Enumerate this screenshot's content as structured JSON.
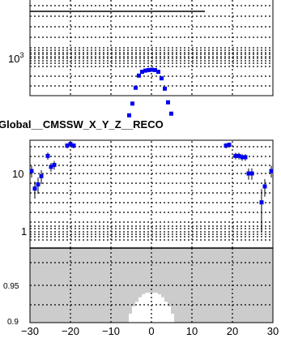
{
  "chart_data": [
    {
      "id": "top-panel",
      "type": "scatter",
      "y_scale": "log",
      "grid": true,
      "y_tick_labels": [
        {
          "base": "10",
          "exp": "3"
        }
      ],
      "points": [
        {
          "x": -5.5,
          "y": 250
        },
        {
          "x": -4.7,
          "y": 330
        },
        {
          "x": -3.9,
          "y": 480
        },
        {
          "x": -3.1,
          "y": 640
        },
        {
          "x": -2.3,
          "y": 700
        },
        {
          "x": -1.5,
          "y": 720
        },
        {
          "x": -0.7,
          "y": 730
        },
        {
          "x": 0.1,
          "y": 735
        },
        {
          "x": 0.9,
          "y": 730
        },
        {
          "x": 1.7,
          "y": 700
        },
        {
          "x": 2.5,
          "y": 600
        },
        {
          "x": 3.3,
          "y": 470
        },
        {
          "x": 4.1,
          "y": 340
        },
        {
          "x": 4.9,
          "y": 260
        }
      ]
    },
    {
      "id": "middle-panel",
      "type": "scatter",
      "title": "Global__CMSSW_X_Y_Z__RECO",
      "y_scale": "log",
      "grid": true,
      "y_tick_labels": [
        {
          "base": "10"
        },
        {
          "base": "1"
        }
      ],
      "points": [
        {
          "x": -29.6,
          "y": 11,
          "err": 2.5
        },
        {
          "x": -28.8,
          "y": 5.5,
          "err": 1.8
        },
        {
          "x": -28.0,
          "y": 6.5,
          "err": 2.0
        },
        {
          "x": -27.2,
          "y": 9,
          "err": 2.4
        },
        {
          "x": -25.6,
          "y": 20,
          "err": 2.8
        },
        {
          "x": -24.8,
          "y": 13,
          "err": 2.2
        },
        {
          "x": -24.0,
          "y": 14,
          "err": 2.4
        },
        {
          "x": -20.8,
          "y": 30,
          "err": 3.0
        },
        {
          "x": -20.0,
          "y": 32,
          "err": 3.0
        },
        {
          "x": -19.2,
          "y": 30,
          "err": 3.0
        },
        {
          "x": 18.4,
          "y": 30,
          "err": 3.0
        },
        {
          "x": 19.2,
          "y": 31,
          "err": 3.0
        },
        {
          "x": 20.8,
          "y": 20,
          "err": 2.6
        },
        {
          "x": 21.6,
          "y": 20,
          "err": 2.6
        },
        {
          "x": 22.4,
          "y": 19,
          "err": 2.5
        },
        {
          "x": 23.2,
          "y": 19,
          "err": 2.5
        },
        {
          "x": 24.0,
          "y": 10,
          "err": 2.2
        },
        {
          "x": 24.8,
          "y": 10,
          "err": 2.2
        },
        {
          "x": 27.2,
          "y": 3.2,
          "err": 2.2
        },
        {
          "x": 28.0,
          "y": 6,
          "err": 2.0
        },
        {
          "x": 29.6,
          "y": 11,
          "err": 2.5
        }
      ]
    },
    {
      "id": "bottom-panel",
      "type": "area",
      "grid": true,
      "ylim": [
        0.9,
        1.0
      ],
      "y_tick_labels": [
        "0.95",
        "0.9"
      ],
      "x_tick_labels": [
        "−30",
        "−20",
        "−10",
        "0",
        "10",
        "20",
        "30"
      ],
      "xlim": [
        -30,
        30
      ],
      "band_top": 1.0,
      "white_region": [
        {
          "x0": -6.4,
          "x1": -5.6,
          "y": 0.9
        },
        {
          "x0": -5.6,
          "x1": -4.8,
          "y": 0.912
        },
        {
          "x0": -4.8,
          "x1": -4.0,
          "y": 0.922
        },
        {
          "x0": -4.0,
          "x1": -3.2,
          "y": 0.928
        },
        {
          "x0": -3.2,
          "x1": -2.4,
          "y": 0.934
        },
        {
          "x0": -2.4,
          "x1": -1.6,
          "y": 0.938
        },
        {
          "x0": -1.6,
          "x1": 1.6,
          "y": 0.94
        },
        {
          "x0": 1.6,
          "x1": 2.4,
          "y": 0.938
        },
        {
          "x0": 2.4,
          "x1": 3.2,
          "y": 0.934
        },
        {
          "x0": 3.2,
          "x1": 4.0,
          "y": 0.928
        },
        {
          "x0": 4.0,
          "x1": 4.8,
          "y": 0.922
        },
        {
          "x0": 4.8,
          "x1": 5.6,
          "y": 0.912
        },
        {
          "x0": 5.6,
          "x1": 6.4,
          "y": 0.9
        }
      ]
    }
  ],
  "colors": {
    "marker": "#0000ee",
    "band": "#cccccc",
    "axis": "#000000",
    "grid": "#000000"
  }
}
